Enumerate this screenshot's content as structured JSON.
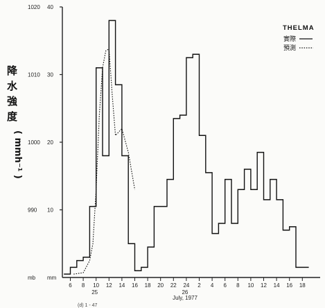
{
  "chart_data": {
    "type": "line",
    "title": "",
    "xlabel": "July, 1977",
    "ylabel_cjk": [
      "降",
      "水",
      "強",
      "度"
    ],
    "ylabel_unit": "( mmh⁻¹ )",
    "left_axis_unit": "mb",
    "left_axis_labels": [
      "1020",
      "1010",
      "1000",
      "990"
    ],
    "right_axis_unit": "mm",
    "right_axis_labels": [
      "40",
      "30",
      "20",
      "10"
    ],
    "ylim": [
      0,
      40
    ],
    "x_ticks": [
      "6",
      "8",
      "10",
      "12",
      "14",
      "16",
      "18",
      "20",
      "22",
      "24",
      "2",
      "4",
      "6",
      "8",
      "10",
      "12",
      "14",
      "16",
      "18"
    ],
    "day_labels": [
      "25",
      "26"
    ],
    "figure_mark": "(d) 1 - 47",
    "legend": {
      "title": "THELMA",
      "entries": [
        {
          "label": "實際",
          "style": "solid"
        },
        {
          "label": "預測",
          "style": "dotted"
        }
      ]
    },
    "series": [
      {
        "name": "實際",
        "style": "step",
        "x_hours_since_25_00": [
          5,
          6,
          7,
          8,
          9,
          10,
          11,
          12,
          13,
          14,
          15,
          16,
          17,
          18,
          19,
          20,
          21,
          22,
          23,
          24,
          25,
          26,
          27,
          28,
          29,
          30,
          31,
          32,
          33,
          34,
          35,
          36,
          37,
          38,
          39,
          40,
          41,
          42
        ],
        "values": [
          0.5,
          1.5,
          2.5,
          3.0,
          10.5,
          31.0,
          18.0,
          38.0,
          28.5,
          18.0,
          5.0,
          1.0,
          1.5,
          4.5,
          10.5,
          10.5,
          14.5,
          23.5,
          24.0,
          32.5,
          33.0,
          21.0,
          15.5,
          6.5,
          8.0,
          14.5,
          8.0,
          13.0,
          16.0,
          13.0,
          18.5,
          11.5,
          14.5,
          11.5,
          7.0,
          7.5,
          1.5,
          1.5
        ]
      },
      {
        "name": "預測",
        "style": "dotted",
        "x_hours_since_25_00": [
          6.5,
          8.0,
          9.0,
          9.5,
          10.0,
          10.5,
          11.0,
          11.5,
          12.0,
          12.5,
          13.0,
          14.0,
          15.0,
          16.0
        ],
        "values": [
          0.5,
          0.7,
          2.5,
          5.0,
          13.0,
          24.0,
          31.0,
          33.5,
          33.8,
          27.0,
          21.0,
          22.0,
          18.5,
          13.0
        ]
      }
    ]
  }
}
